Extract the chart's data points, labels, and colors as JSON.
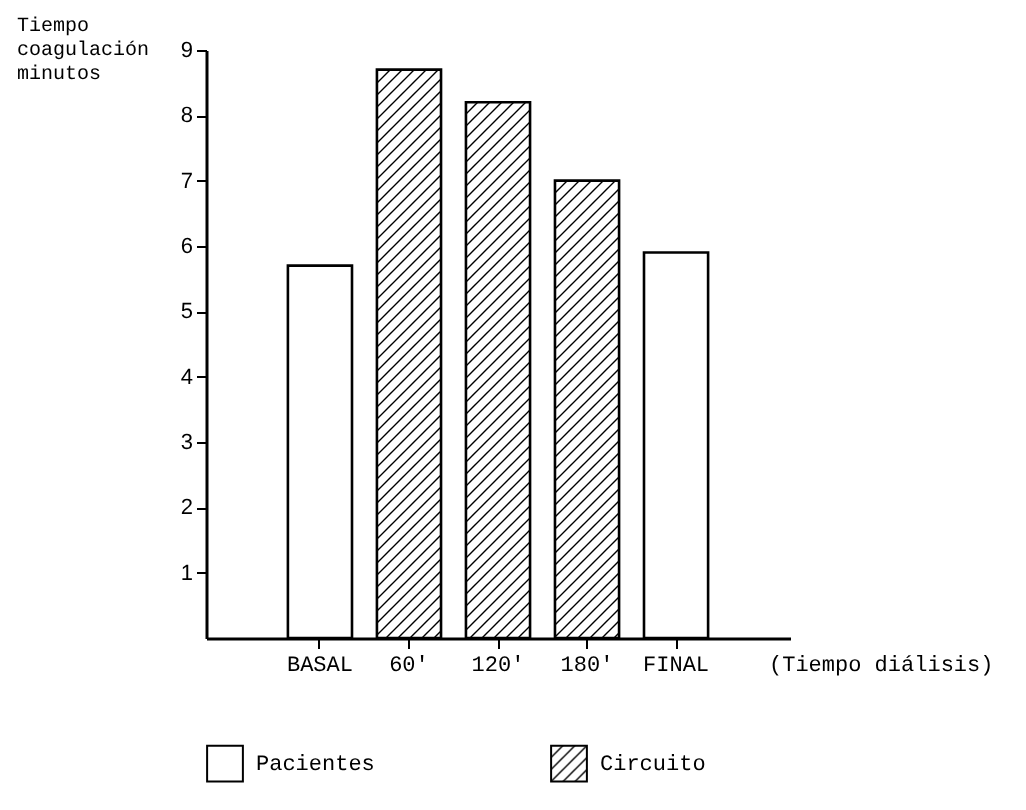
{
  "chart_data": {
    "type": "bar",
    "ylabel": "Tiempo coagulación minutos",
    "xlabel": "(Tiempo diálisis)",
    "categories": [
      "BASAL",
      "60'",
      "120'",
      "180'",
      "FINAL"
    ],
    "series": [
      {
        "name": "Pacientes",
        "color": "#ffffff",
        "values": [
          5.7,
          null,
          null,
          null,
          5.9
        ]
      },
      {
        "name": "Circuito",
        "color": "#000000",
        "values": [
          null,
          8.7,
          8.2,
          7.0,
          null
        ]
      }
    ],
    "ylim": [
      0,
      9
    ],
    "yticks": [
      1,
      2,
      3,
      4,
      5,
      6,
      7,
      8,
      9
    ],
    "grid": false,
    "legend": "bottom"
  }
}
